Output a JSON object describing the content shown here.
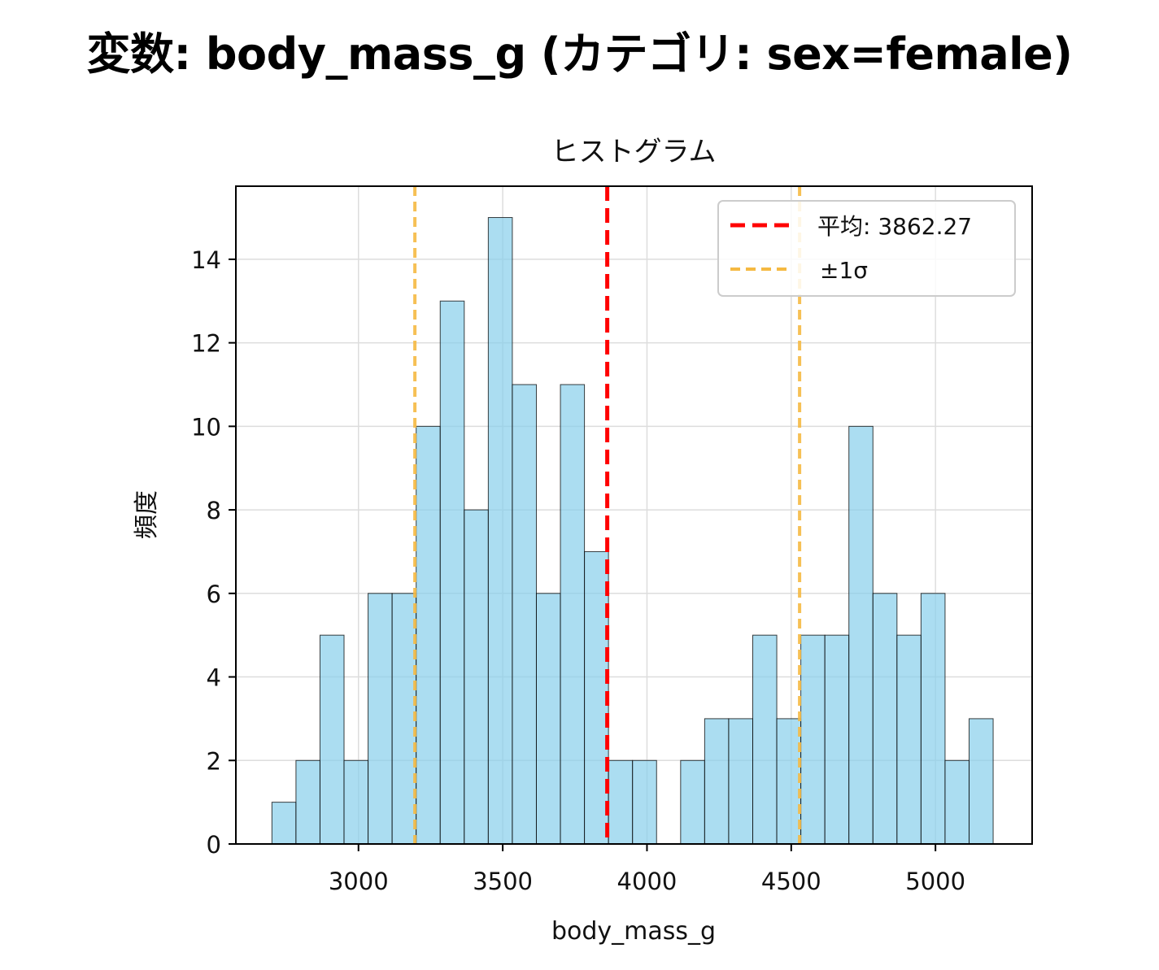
{
  "figure": {
    "title": "変数: body_mass_g (カテゴリ: sex=female)"
  },
  "chart_data": {
    "type": "bar",
    "subtitle": "ヒストグラム",
    "xlabel": "body_mass_g",
    "ylabel": "頻度",
    "xlim": [
      2575,
      5335
    ],
    "ylim": [
      0,
      15.75
    ],
    "bin_start": 2700,
    "bin_width": 83.33,
    "values": [
      1,
      2,
      5,
      2,
      6,
      6,
      10,
      13,
      8,
      15,
      11,
      6,
      11,
      7,
      2,
      2,
      0,
      2,
      3,
      3,
      5,
      3,
      5,
      5,
      10,
      6,
      5,
      6,
      2,
      3
    ],
    "x_ticks": [
      3000,
      3500,
      4000,
      4500,
      5000
    ],
    "y_ticks": [
      0,
      2,
      4,
      6,
      8,
      10,
      12,
      14
    ],
    "grid": true,
    "bar_color": "#87ceeb",
    "bar_edge_color": "#000000",
    "mean": {
      "value": 3862.27,
      "color": "#ff0000"
    },
    "sigma_lines": {
      "values": [
        3195.5,
        4529.0
      ],
      "color": "#f5b942"
    },
    "legend": {
      "position": "top-right",
      "entries": [
        {
          "label": "平均: 3862.27",
          "color": "#ff0000"
        },
        {
          "label": "±1σ",
          "color": "#f5b942"
        }
      ]
    }
  }
}
